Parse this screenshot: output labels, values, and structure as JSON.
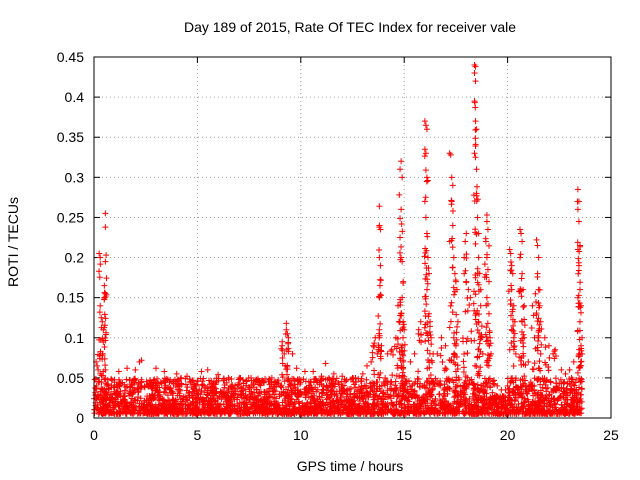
{
  "chart_data": {
    "type": "scatter",
    "title": "Day 189 of 2015, Rate Of TEC Index for receiver vale",
    "xlabel": "GPS time / hours",
    "ylabel": "ROTI / TECUs",
    "xlim": [
      0,
      25
    ],
    "ylim": [
      0,
      0.45
    ],
    "x_ticks": [
      "0",
      "5",
      "10",
      "15",
      "20",
      "25"
    ],
    "y_ticks": [
      "0",
      "0.05",
      "0.1",
      "0.15",
      "0.2",
      "0.25",
      "0.3",
      "0.35",
      "0.4",
      "0.45"
    ],
    "grid": true,
    "marker": "+",
    "color": "#ff0000",
    "baseline": {
      "x_range": [
        0.0,
        23.6
      ],
      "y_range": [
        0.005,
        0.05
      ],
      "description": "dense band of points across the whole day"
    },
    "points": [
      [
        0.1,
        0.07
      ],
      [
        0.15,
        0.065
      ],
      [
        0.2,
        0.06
      ],
      [
        0.3,
        0.055
      ],
      [
        0.45,
        0.058
      ],
      [
        0.55,
        0.06
      ],
      [
        0.25,
        0.205
      ],
      [
        0.3,
        0.2
      ],
      [
        0.3,
        0.14
      ],
      [
        0.35,
        0.125
      ],
      [
        0.4,
        0.12
      ],
      [
        0.45,
        0.11
      ],
      [
        0.55,
        0.255
      ],
      [
        0.55,
        0.238
      ],
      [
        0.55,
        0.195
      ],
      [
        0.5,
        0.165
      ],
      [
        0.55,
        0.155
      ],
      [
        0.5,
        0.15
      ],
      [
        1.2,
        0.058
      ],
      [
        1.6,
        0.062
      ],
      [
        2.2,
        0.07
      ],
      [
        2.3,
        0.072
      ],
      [
        2.0,
        0.06
      ],
      [
        3.0,
        0.062
      ],
      [
        3.4,
        0.058
      ],
      [
        4.0,
        0.055
      ],
      [
        4.5,
        0.052
      ],
      [
        5.2,
        0.058
      ],
      [
        5.5,
        0.06
      ],
      [
        6.0,
        0.054
      ],
      [
        6.5,
        0.05
      ],
      [
        7.0,
        0.048
      ],
      [
        8.0,
        0.045
      ],
      [
        8.5,
        0.048
      ],
      [
        9.1,
        0.095
      ],
      [
        9.1,
        0.09
      ],
      [
        9.2,
        0.08
      ],
      [
        9.3,
        0.118
      ],
      [
        9.3,
        0.11
      ],
      [
        9.35,
        0.105
      ],
      [
        9.4,
        0.1
      ],
      [
        9.6,
        0.08
      ],
      [
        9.8,
        0.062
      ],
      [
        10.2,
        0.058
      ],
      [
        10.6,
        0.058
      ],
      [
        11.0,
        0.052
      ],
      [
        11.2,
        0.068
      ],
      [
        11.6,
        0.055
      ],
      [
        12.0,
        0.052
      ],
      [
        12.5,
        0.05
      ],
      [
        13.0,
        0.055
      ],
      [
        13.2,
        0.065
      ],
      [
        13.4,
        0.07
      ],
      [
        13.5,
        0.09
      ],
      [
        13.6,
        0.1
      ],
      [
        13.7,
        0.08
      ],
      [
        13.8,
        0.264
      ],
      [
        13.8,
        0.24
      ],
      [
        13.85,
        0.235
      ],
      [
        13.8,
        0.2
      ],
      [
        13.85,
        0.19
      ],
      [
        13.8,
        0.15
      ],
      [
        13.8,
        0.11
      ],
      [
        13.9,
        0.09
      ],
      [
        14.2,
        0.08
      ],
      [
        14.4,
        0.085
      ],
      [
        14.6,
        0.1
      ],
      [
        14.7,
        0.14
      ],
      [
        14.75,
        0.12
      ],
      [
        14.85,
        0.32
      ],
      [
        14.8,
        0.31
      ],
      [
        14.9,
        0.3
      ],
      [
        14.85,
        0.26
      ],
      [
        14.8,
        0.225
      ],
      [
        14.85,
        0.2
      ],
      [
        14.9,
        0.195
      ],
      [
        14.95,
        0.17
      ],
      [
        14.9,
        0.15
      ],
      [
        14.85,
        0.13
      ],
      [
        14.95,
        0.12
      ],
      [
        15.0,
        0.11
      ],
      [
        14.9,
        0.09
      ],
      [
        14.95,
        0.07
      ],
      [
        15.3,
        0.07
      ],
      [
        15.5,
        0.08
      ],
      [
        15.7,
        0.11
      ],
      [
        15.8,
        0.12
      ],
      [
        16.0,
        0.37
      ],
      [
        16.05,
        0.365
      ],
      [
        16.1,
        0.36
      ],
      [
        16.0,
        0.335
      ],
      [
        16.05,
        0.33
      ],
      [
        16.1,
        0.3
      ],
      [
        16.0,
        0.27
      ],
      [
        16.05,
        0.25
      ],
      [
        16.1,
        0.23
      ],
      [
        16.15,
        0.2
      ],
      [
        16.2,
        0.18
      ],
      [
        16.1,
        0.16
      ],
      [
        16.2,
        0.13
      ],
      [
        16.25,
        0.12
      ],
      [
        16.3,
        0.1
      ],
      [
        16.4,
        0.08
      ],
      [
        16.6,
        0.08
      ],
      [
        16.8,
        0.1
      ],
      [
        17.0,
        0.09
      ],
      [
        17.2,
        0.33
      ],
      [
        17.25,
        0.328
      ],
      [
        17.3,
        0.3
      ],
      [
        17.35,
        0.29
      ],
      [
        17.3,
        0.27
      ],
      [
        17.35,
        0.24
      ],
      [
        17.4,
        0.2
      ],
      [
        17.45,
        0.18
      ],
      [
        17.5,
        0.17
      ],
      [
        17.55,
        0.16
      ],
      [
        17.6,
        0.12
      ],
      [
        17.4,
        0.1
      ],
      [
        17.5,
        0.09
      ],
      [
        17.9,
        0.2
      ],
      [
        17.95,
        0.22
      ],
      [
        18.0,
        0.23
      ],
      [
        17.9,
        0.18
      ],
      [
        18.0,
        0.17
      ],
      [
        18.1,
        0.16
      ],
      [
        18.2,
        0.15
      ],
      [
        18.4,
        0.44
      ],
      [
        18.45,
        0.438
      ],
      [
        18.4,
        0.43
      ],
      [
        18.45,
        0.42
      ],
      [
        18.4,
        0.395
      ],
      [
        18.45,
        0.37
      ],
      [
        18.5,
        0.36
      ],
      [
        18.4,
        0.33
      ],
      [
        18.45,
        0.325
      ],
      [
        18.5,
        0.31
      ],
      [
        18.5,
        0.28
      ],
      [
        18.55,
        0.25
      ],
      [
        18.6,
        0.23
      ],
      [
        18.6,
        0.2
      ],
      [
        18.65,
        0.18
      ],
      [
        18.7,
        0.16
      ],
      [
        18.7,
        0.14
      ],
      [
        18.6,
        0.12
      ],
      [
        18.7,
        0.1
      ],
      [
        18.8,
        0.08
      ],
      [
        19.0,
        0.253
      ],
      [
        19.0,
        0.245
      ],
      [
        19.05,
        0.235
      ],
      [
        18.95,
        0.22
      ],
      [
        19.0,
        0.2
      ],
      [
        19.05,
        0.185
      ],
      [
        19.1,
        0.17
      ],
      [
        19.0,
        0.15
      ],
      [
        19.1,
        0.13
      ],
      [
        19.15,
        0.1
      ],
      [
        19.2,
        0.08
      ],
      [
        19.5,
        0.04
      ],
      [
        19.7,
        0.035
      ],
      [
        19.9,
        0.035
      ],
      [
        20.0,
        0.04
      ],
      [
        20.1,
        0.21
      ],
      [
        20.15,
        0.205
      ],
      [
        20.2,
        0.19
      ],
      [
        20.25,
        0.18
      ],
      [
        20.2,
        0.16
      ],
      [
        20.3,
        0.14
      ],
      [
        20.35,
        0.12
      ],
      [
        20.3,
        0.1
      ],
      [
        20.4,
        0.08
      ],
      [
        20.6,
        0.235
      ],
      [
        20.65,
        0.23
      ],
      [
        20.7,
        0.22
      ],
      [
        20.6,
        0.2
      ],
      [
        20.7,
        0.18
      ],
      [
        20.75,
        0.16
      ],
      [
        20.8,
        0.14
      ],
      [
        20.7,
        0.12
      ],
      [
        20.8,
        0.1
      ],
      [
        21.0,
        0.07
      ],
      [
        21.2,
        0.14
      ],
      [
        21.3,
        0.1
      ],
      [
        21.4,
        0.222
      ],
      [
        21.45,
        0.215
      ],
      [
        21.5,
        0.2
      ],
      [
        21.45,
        0.18
      ],
      [
        21.5,
        0.16
      ],
      [
        21.55,
        0.14
      ],
      [
        21.6,
        0.12
      ],
      [
        21.5,
        0.1
      ],
      [
        21.6,
        0.08
      ],
      [
        21.8,
        0.1
      ],
      [
        22.0,
        0.09
      ],
      [
        22.2,
        0.08
      ],
      [
        22.3,
        0.085
      ],
      [
        22.6,
        0.06
      ],
      [
        22.8,
        0.055
      ],
      [
        23.0,
        0.06
      ],
      [
        23.2,
        0.07
      ],
      [
        23.4,
        0.285
      ],
      [
        23.45,
        0.27
      ],
      [
        23.4,
        0.26
      ],
      [
        23.45,
        0.245
      ],
      [
        23.5,
        0.215
      ],
      [
        23.4,
        0.21
      ],
      [
        23.45,
        0.19
      ],
      [
        23.5,
        0.16
      ],
      [
        23.55,
        0.14
      ],
      [
        23.5,
        0.12
      ],
      [
        23.6,
        0.1
      ],
      [
        23.55,
        0.09
      ],
      [
        23.6,
        0.08
      ]
    ]
  }
}
